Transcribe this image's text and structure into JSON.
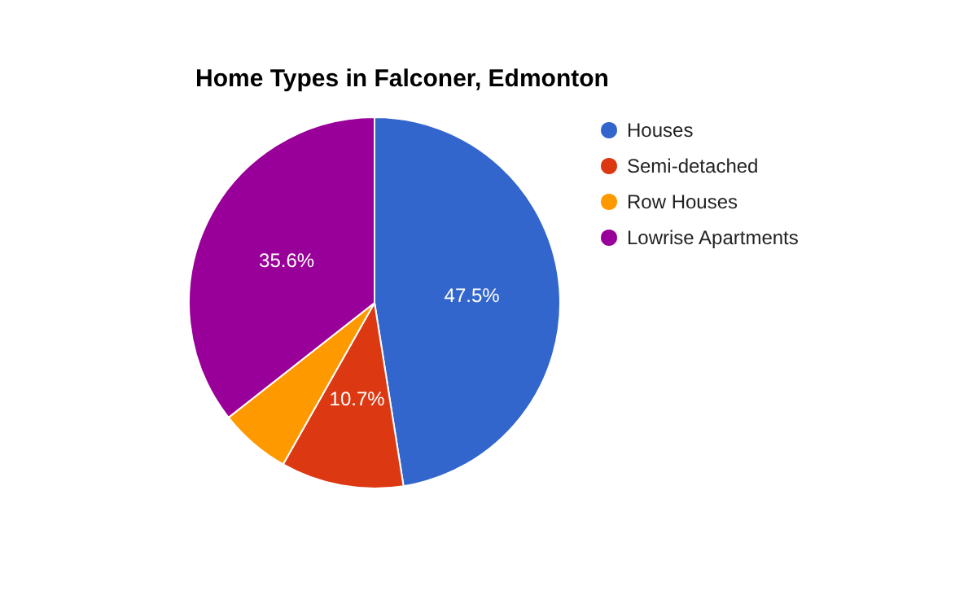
{
  "chart_data": {
    "type": "pie",
    "title": "Home Types in Falconer, Edmonton",
    "categories": [
      "Houses",
      "Semi-detached",
      "Row Houses",
      "Lowrise Apartments"
    ],
    "values": [
      47.5,
      10.7,
      6.2,
      35.6
    ],
    "colors": [
      "#3366cc",
      "#dc3912",
      "#ff9900",
      "#990099"
    ],
    "value_labels": [
      "47.5%",
      "10.7%",
      null,
      "35.6%"
    ],
    "legend": "right"
  }
}
